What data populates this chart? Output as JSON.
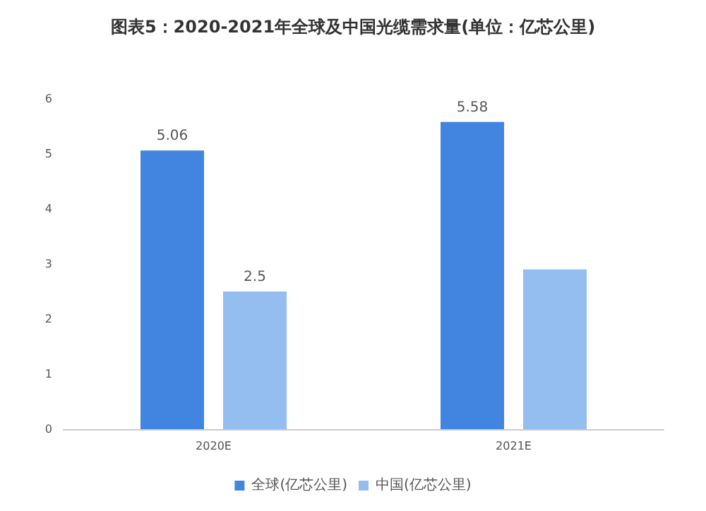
{
  "chart_data": {
    "type": "bar",
    "title": "图表5：2020-2021年全球及中国光缆需求量(单位：亿芯公里)",
    "categories": [
      "2020E",
      "2021E"
    ],
    "series": [
      {
        "name": "全球(亿芯公里)",
        "color": "#4285e0",
        "values": [
          5.06,
          5.58
        ],
        "value_labels": [
          "5.06",
          "5.58"
        ]
      },
      {
        "name": "中国(亿芯公里)",
        "color": "#94bdf0",
        "values": [
          2.5,
          2.9
        ],
        "value_labels": [
          "2.5",
          null
        ]
      }
    ],
    "ylim": [
      0,
      6
    ],
    "yticks": [
      0,
      1,
      2,
      3,
      4,
      5,
      6
    ],
    "grid": false,
    "legend": "bottom"
  }
}
